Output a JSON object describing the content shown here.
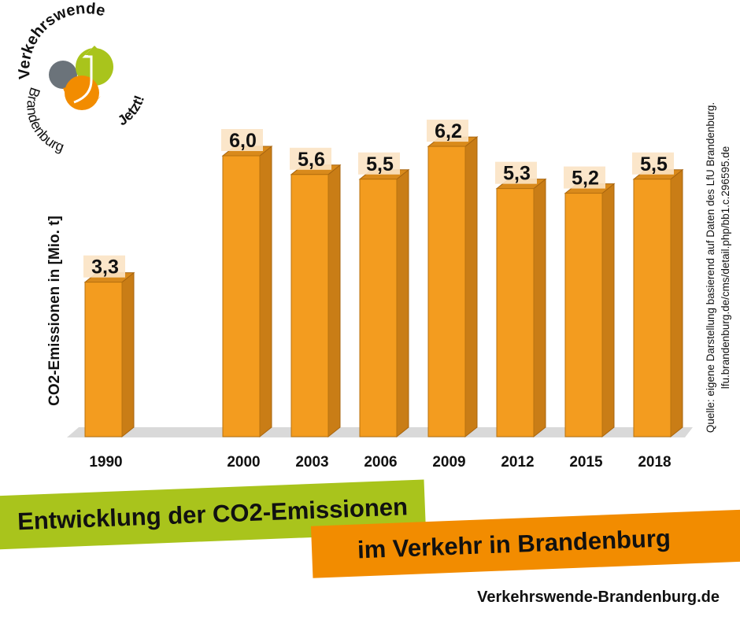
{
  "logo": {
    "top_text": "Verkehrswende",
    "bottom_text": "Brandenburg",
    "side_text": "Jetzt!"
  },
  "chart_data": {
    "type": "bar",
    "categories": [
      "1990",
      "2000",
      "2003",
      "2006",
      "2009",
      "2012",
      "2015",
      "2018"
    ],
    "values": [
      3.3,
      6.0,
      5.6,
      5.5,
      6.2,
      5.3,
      5.2,
      5.5
    ],
    "value_labels": [
      "3,3",
      "6,0",
      "5,6",
      "5,5",
      "6,2",
      "5,3",
      "5,2",
      "5,5"
    ],
    "title": "Entwicklung der CO2-Emissionen im Verkehr in Brandenburg",
    "xlabel": "",
    "ylabel": "CO2-Emissionen in [Mio. t]",
    "ylim": [
      0,
      6.5
    ],
    "grid": false,
    "bar_color": "#f39c1f"
  },
  "source": {
    "line1": "Quelle: eigene Darstellung basierend auf Daten des LfU Brandenburg.",
    "line2": "lfu.brandenburg.de/cms/detail.php/bb1.c.296595.de"
  },
  "banner": {
    "line1": "Entwicklung der CO2-Emissionen",
    "line2": "im Verkehr in Brandenburg"
  },
  "footer": "Verkehrswende-Brandenburg.de"
}
